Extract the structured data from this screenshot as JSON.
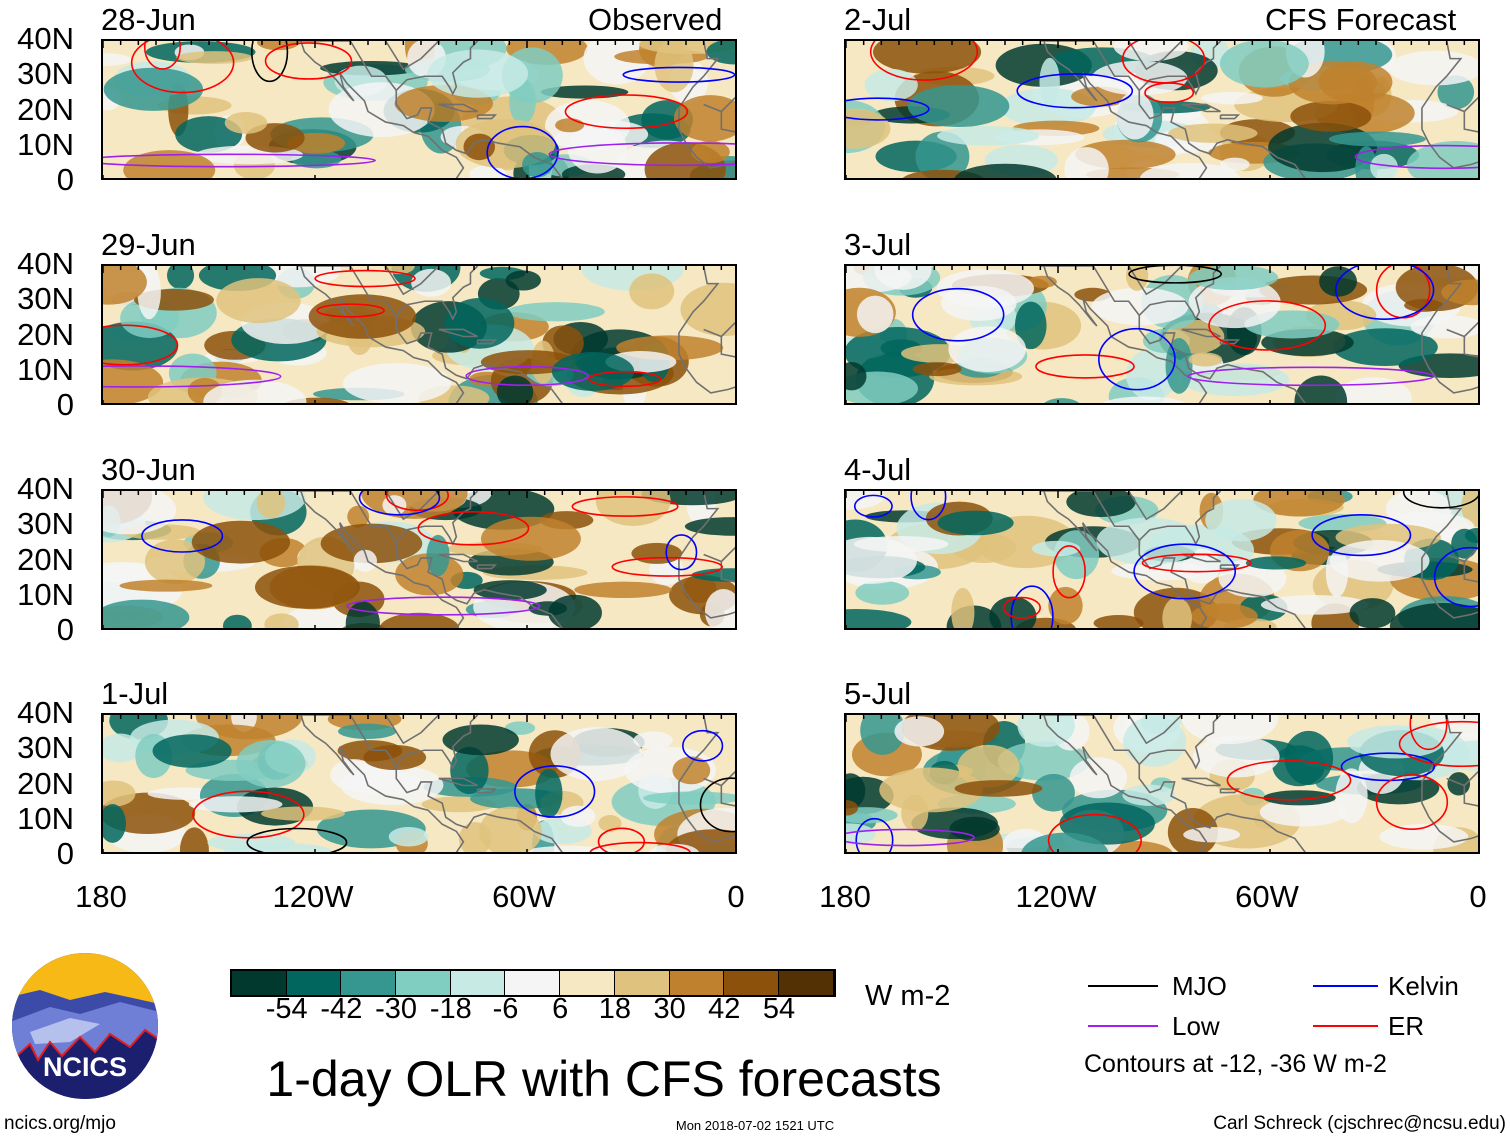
{
  "observed_label": "Observed",
  "forecast_label": "CFS Forecast",
  "panels_left": [
    {
      "date": "28-Jun"
    },
    {
      "date": "29-Jun"
    },
    {
      "date": "30-Jun"
    },
    {
      "date": "1-Jul"
    }
  ],
  "panels_right": [
    {
      "date": "2-Jul"
    },
    {
      "date": "3-Jul"
    },
    {
      "date": "4-Jul"
    },
    {
      "date": "5-Jul"
    }
  ],
  "lat_labels": [
    "40N",
    "30N",
    "20N",
    "10N",
    "0"
  ],
  "lon_labels": [
    "180",
    "120W",
    "60W",
    "0"
  ],
  "colorbar": {
    "colors": [
      "#01392f",
      "#01665e",
      "#35978f",
      "#80cdc1",
      "#c7eae5",
      "#f5f5f5",
      "#f6e8c3",
      "#dfc27d",
      "#bf812d",
      "#8c510a",
      "#543005"
    ],
    "ticks": [
      "-54",
      "-42",
      "-30",
      "-18",
      "-6",
      "6",
      "18",
      "30",
      "42",
      "54"
    ],
    "units": "W m-2"
  },
  "title": "1-day OLR with CFS forecasts",
  "legend": {
    "items": [
      {
        "label": "MJO",
        "color": "#000000"
      },
      {
        "label": "Kelvin",
        "color": "#0000ff"
      },
      {
        "label": "Low",
        "color": "#a020f0"
      },
      {
        "label": "ER",
        "color": "#ff0000"
      }
    ],
    "note": "Contours at -12, -36 W m-2"
  },
  "logo_text": "NCICS",
  "footer": {
    "url": "ncics.org/mjo",
    "timestamp": "Mon 2018-07-02 1521 UTC",
    "credit": "Carl Schreck (cjschrec@ncsu.edu)"
  }
}
